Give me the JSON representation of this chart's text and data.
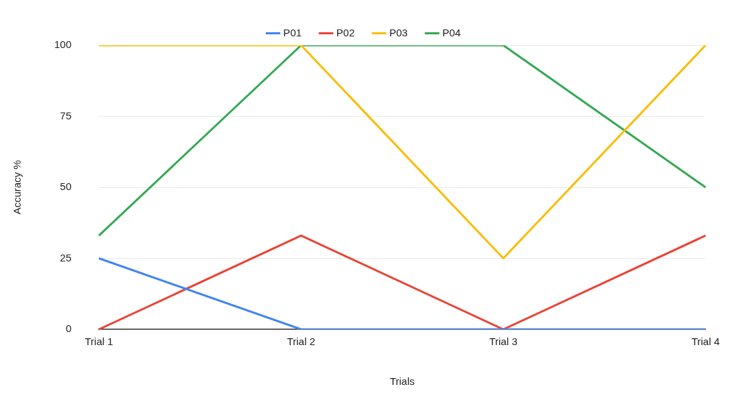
{
  "chart_data": {
    "type": "line",
    "xlabel": "Trials",
    "ylabel": "Accuracy %",
    "categories": [
      "Trial 1",
      "Trial 2",
      "Trial 3",
      "Trial 4"
    ],
    "series": [
      {
        "name": "P01",
        "color": "#4285f4",
        "values": [
          25,
          0,
          0,
          0
        ]
      },
      {
        "name": "P02",
        "color": "#ea4335",
        "values": [
          0,
          33,
          0,
          33
        ]
      },
      {
        "name": "P03",
        "color": "#fbbc04",
        "values": [
          100,
          100,
          25,
          100
        ]
      },
      {
        "name": "P04",
        "color": "#34a853",
        "values": [
          33,
          100,
          100,
          50
        ]
      }
    ],
    "ylim": [
      0,
      100
    ],
    "yticks": [
      0,
      25,
      50,
      75,
      100
    ],
    "grid": "y",
    "legend": "top",
    "marker": "none",
    "line_style": "solid"
  }
}
